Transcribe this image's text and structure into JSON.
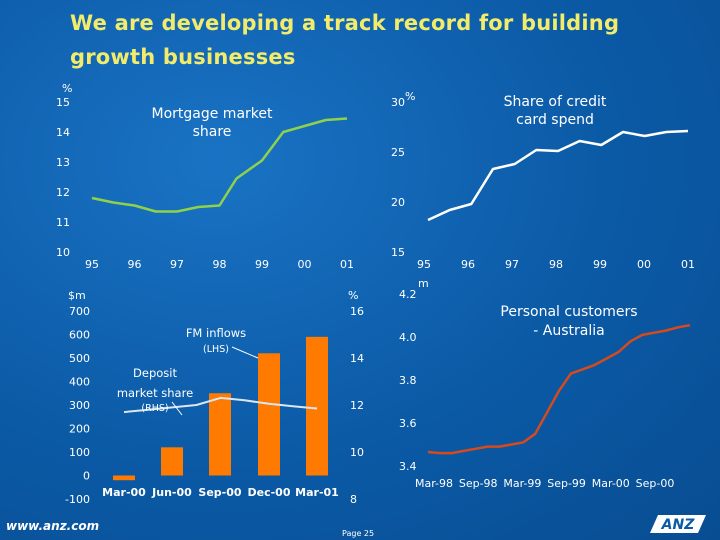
{
  "slide": {
    "title": "We are developing a track record for building growth businesses",
    "footer_url": "www.anz.com",
    "page_label": "Page 25",
    "logo_text": "ANZ"
  },
  "colors": {
    "title": "#f2ec6a",
    "line_green": "#8fd24a",
    "line_white": "#ffffff",
    "line_red": "#d64a1c",
    "bar_orange": "#ff7a00",
    "deposit_line": "#dce6f3",
    "background": "#0b5aa6"
  },
  "chart_data": [
    {
      "type": "line",
      "title": "Mortgage market share",
      "title_lines": [
        "Mortgage market",
        "share"
      ],
      "unit_label": "%",
      "categories": [
        "95",
        "96",
        "97",
        "98",
        "99",
        "00",
        "01"
      ],
      "y_ticks": [
        10,
        11,
        12,
        13,
        14,
        15
      ],
      "ylim": [
        10,
        15
      ],
      "x": [
        95.0,
        95.5,
        96.0,
        96.5,
        97.0,
        97.5,
        98.0,
        98.4,
        99.0,
        99.5,
        100.0,
        100.5,
        101.0
      ],
      "values": [
        11.8,
        11.65,
        11.55,
        11.35,
        11.35,
        11.5,
        11.55,
        12.45,
        13.05,
        14.0,
        14.2,
        14.4,
        14.45
      ]
    },
    {
      "type": "line",
      "title": "Share of credit card spend",
      "title_lines": [
        "Share of credit",
        "card spend"
      ],
      "unit_label": "%",
      "categories": [
        "95",
        "96",
        "97",
        "98",
        "99",
        "00",
        "01"
      ],
      "y_ticks": [
        15,
        20,
        25,
        30
      ],
      "ylim": [
        15,
        30
      ],
      "x": [
        95.0,
        95.5,
        96.0,
        96.5,
        97.0,
        97.5,
        98.0,
        98.5,
        99.0,
        99.5,
        100.0,
        100.5,
        101.0
      ],
      "values": [
        18.2,
        19.2,
        19.8,
        23.3,
        23.8,
        25.2,
        25.1,
        26.1,
        25.7,
        27.0,
        26.6,
        27.0,
        27.1
      ]
    },
    {
      "type": "bar",
      "title": "",
      "left_unit": "$m",
      "right_unit": "%",
      "categories": [
        "Mar-00",
        "Jun-00",
        "Sep-00",
        "Dec-00",
        "Mar-01"
      ],
      "left_ticks": [
        -100,
        0,
        100,
        200,
        300,
        400,
        500,
        600,
        700
      ],
      "right_ticks": [
        8,
        10,
        12,
        14,
        16
      ],
      "ylim_left": [
        -100,
        700
      ],
      "ylim_right": [
        8,
        16
      ],
      "series": [
        {
          "name": "FM inflows",
          "axis_note": "(LHS)",
          "values": [
            -20,
            120,
            350,
            520,
            590
          ]
        },
        {
          "name": "Deposit market share",
          "axis_note": "(RHS)",
          "x": [
            0,
            0.5,
            1,
            1.5,
            2,
            2.5,
            3,
            3.5,
            4
          ],
          "values": [
            11.7,
            11.8,
            11.9,
            12.0,
            12.3,
            12.2,
            12.05,
            11.95,
            11.85
          ]
        }
      ],
      "labels": {
        "fm": "FM inflows",
        "fm_note": "(LHS)",
        "deposit_1": "Deposit",
        "deposit_2": "market share",
        "deposit_note": "(RHS)"
      }
    },
    {
      "type": "line",
      "title": "Personal customers - Australia",
      "title_lines": [
        "Personal customers",
        "- Australia"
      ],
      "unit_label": "m",
      "categories": [
        "Mar-98",
        "Sep-98",
        "Mar-99",
        "Sep-99",
        "Mar-00",
        "Sep-00"
      ],
      "y_ticks": [
        3.4,
        3.6,
        3.8,
        4.0,
        4.2
      ],
      "ylim": [
        3.4,
        4.2
      ],
      "x": [
        0,
        0.25,
        0.5,
        0.75,
        1.0,
        1.25,
        1.5,
        1.75,
        2.0,
        2.25,
        2.5,
        2.75,
        3.0,
        3.25,
        3.5,
        3.75,
        4.0,
        4.25,
        4.5,
        4.75,
        5.0,
        5.25,
        5.5
      ],
      "values": [
        3.465,
        3.46,
        3.46,
        3.47,
        3.48,
        3.49,
        3.49,
        3.5,
        3.51,
        3.55,
        3.65,
        3.75,
        3.83,
        3.85,
        3.87,
        3.9,
        3.93,
        3.98,
        4.01,
        4.02,
        4.03,
        4.045,
        4.055
      ]
    }
  ]
}
